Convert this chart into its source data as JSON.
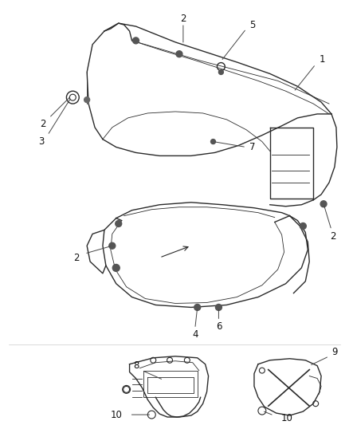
{
  "background_color": "#ffffff",
  "fig_width": 4.38,
  "fig_height": 5.33,
  "dpi": 100,
  "line_color": "#2a2a2a",
  "light_line": "#555555",
  "label_fontsize": 8.5,
  "leader_color": "#444444"
}
